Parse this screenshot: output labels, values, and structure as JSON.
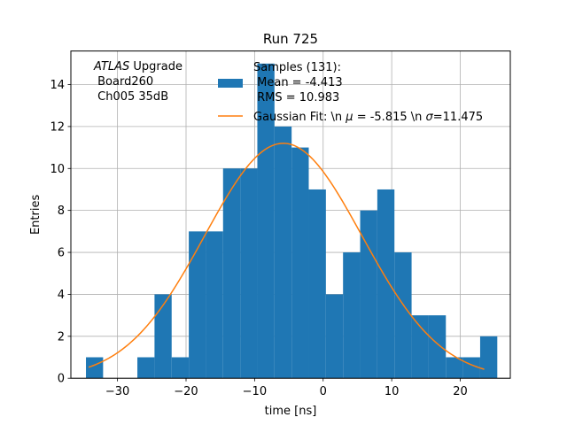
{
  "chart_data": {
    "type": "bar",
    "title": "Run 725",
    "xlabel": "time [ns]",
    "ylabel": "Entries",
    "xlim": [
      -36.8,
      27.3
    ],
    "ylim": [
      0,
      15.6
    ],
    "grid": true,
    "x_ticks": [
      -30,
      -20,
      -10,
      0,
      10,
      20
    ],
    "x_tick_labels": [
      "−30",
      "−20",
      "−10",
      "0",
      "10",
      "20"
    ],
    "y_ticks": [
      0,
      2,
      4,
      6,
      8,
      10,
      12,
      14
    ],
    "y_tick_labels": [
      "0",
      "2",
      "4",
      "6",
      "8",
      "10",
      "12",
      "14"
    ],
    "histogram": {
      "name": "Samples",
      "color": "#1f77b4",
      "bin_edges": [
        -34.6,
        -32.1,
        -29.6,
        -27.1,
        -24.6,
        -22.1,
        -19.6,
        -17.1,
        -14.6,
        -12.1,
        -9.6,
        -7.1,
        -4.6,
        -2.1,
        0.4,
        2.9,
        5.4,
        7.9,
        10.4,
        12.9,
        15.4,
        17.9,
        20.4,
        22.9,
        25.4
      ],
      "counts": [
        1,
        0,
        0,
        1,
        4,
        1,
        7,
        7,
        10,
        10,
        15,
        12,
        11,
        9,
        4,
        6,
        8,
        9,
        6,
        3,
        3,
        1,
        1,
        2
      ],
      "bin_edges_scaled": [
        -34.6,
        -32.1,
        -29.6,
        -27.1,
        -24.6,
        -22.1,
        -19.6,
        -17.1,
        -14.6,
        -12.1,
        -9.6,
        -7.1,
        -4.6,
        -2.1,
        0.4,
        2.9,
        5.4,
        7.9,
        10.4,
        12.9,
        15.4,
        17.9,
        20.4,
        22.9,
        25.4
      ]
    },
    "gaussian_fit": {
      "name": "Gaussian Fit",
      "color": "#ff7f0e",
      "mu": -5.815,
      "sigma": 11.475,
      "amplitude": 11.2,
      "x_range": [
        -34.2,
        23.5
      ]
    },
    "annotation": {
      "italic": "ATLAS",
      "line1_rest": " Upgrade",
      "line2": " Board260",
      "line3": " Ch005 35dB"
    },
    "legend": {
      "placement": "top-right",
      "entries": [
        {
          "kind": "patch",
          "lines": [
            "Samples (131):",
            " Mean = -4.413",
            " RMS = 10.983"
          ]
        },
        {
          "kind": "line",
          "prefix": "Gaussian Fit: \\n ",
          "mu_sym": "μ",
          "mid": " = -5.815 \\n ",
          "sigma_sym": "σ",
          "suffix": "=11.475"
        }
      ]
    }
  }
}
